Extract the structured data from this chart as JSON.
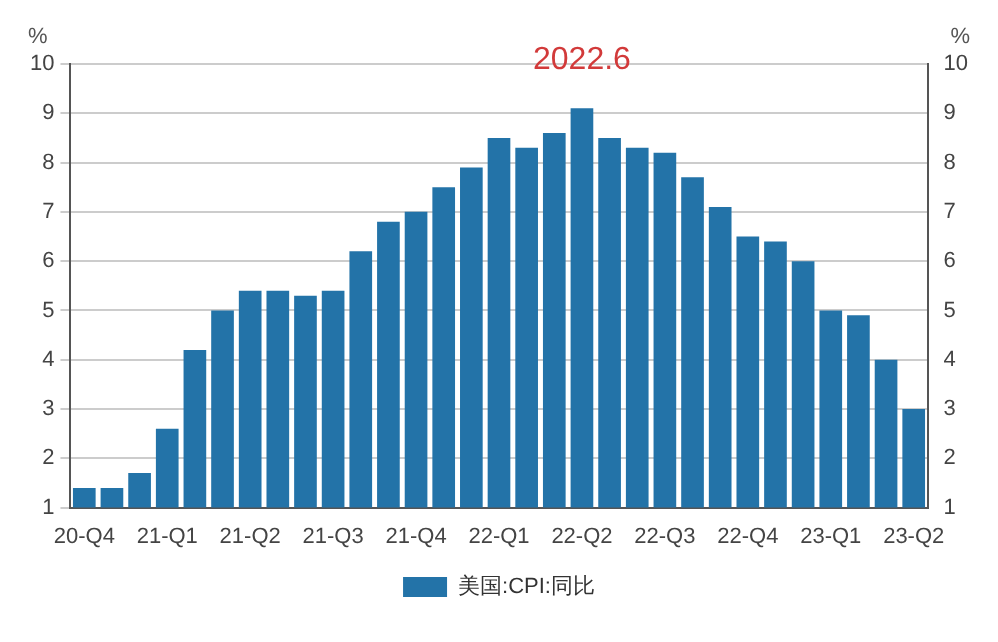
{
  "chart_data": {
    "type": "bar",
    "ylabel": "%",
    "y2label": "%",
    "categories": [
      "20-Q4",
      null,
      null,
      "21-Q1",
      null,
      null,
      "21-Q2",
      null,
      null,
      "21-Q3",
      null,
      null,
      "21-Q4",
      null,
      null,
      "22-Q1",
      null,
      null,
      "22-Q2",
      null,
      null,
      "22-Q3",
      null,
      null,
      "22-Q4",
      null,
      null,
      "23-Q1",
      null,
      null,
      "23-Q2"
    ],
    "series": [
      {
        "name": "美国:CPI:同比",
        "color": "#2373a8",
        "values": [
          1.4,
          1.4,
          1.7,
          2.6,
          4.2,
          5.0,
          5.4,
          5.4,
          5.3,
          5.4,
          6.2,
          6.8,
          7.0,
          7.5,
          7.9,
          8.5,
          8.3,
          8.6,
          9.1,
          8.5,
          8.3,
          8.2,
          7.7,
          7.1,
          6.5,
          6.4,
          6.0,
          5.0,
          4.9,
          4.0,
          3.0
        ]
      }
    ],
    "ylim": [
      1,
      10
    ],
    "yticks": [
      1,
      2,
      3,
      4,
      5,
      6,
      7,
      8,
      9,
      10
    ],
    "y2lim": [
      1,
      10
    ],
    "y2ticks": [
      1,
      2,
      3,
      4,
      5,
      6,
      7,
      8,
      9,
      10
    ],
    "grid": "y",
    "legend": "bottom",
    "annotations": [
      {
        "text": "2022.6",
        "x": "22-Q2",
        "y": 9.1
      }
    ]
  }
}
